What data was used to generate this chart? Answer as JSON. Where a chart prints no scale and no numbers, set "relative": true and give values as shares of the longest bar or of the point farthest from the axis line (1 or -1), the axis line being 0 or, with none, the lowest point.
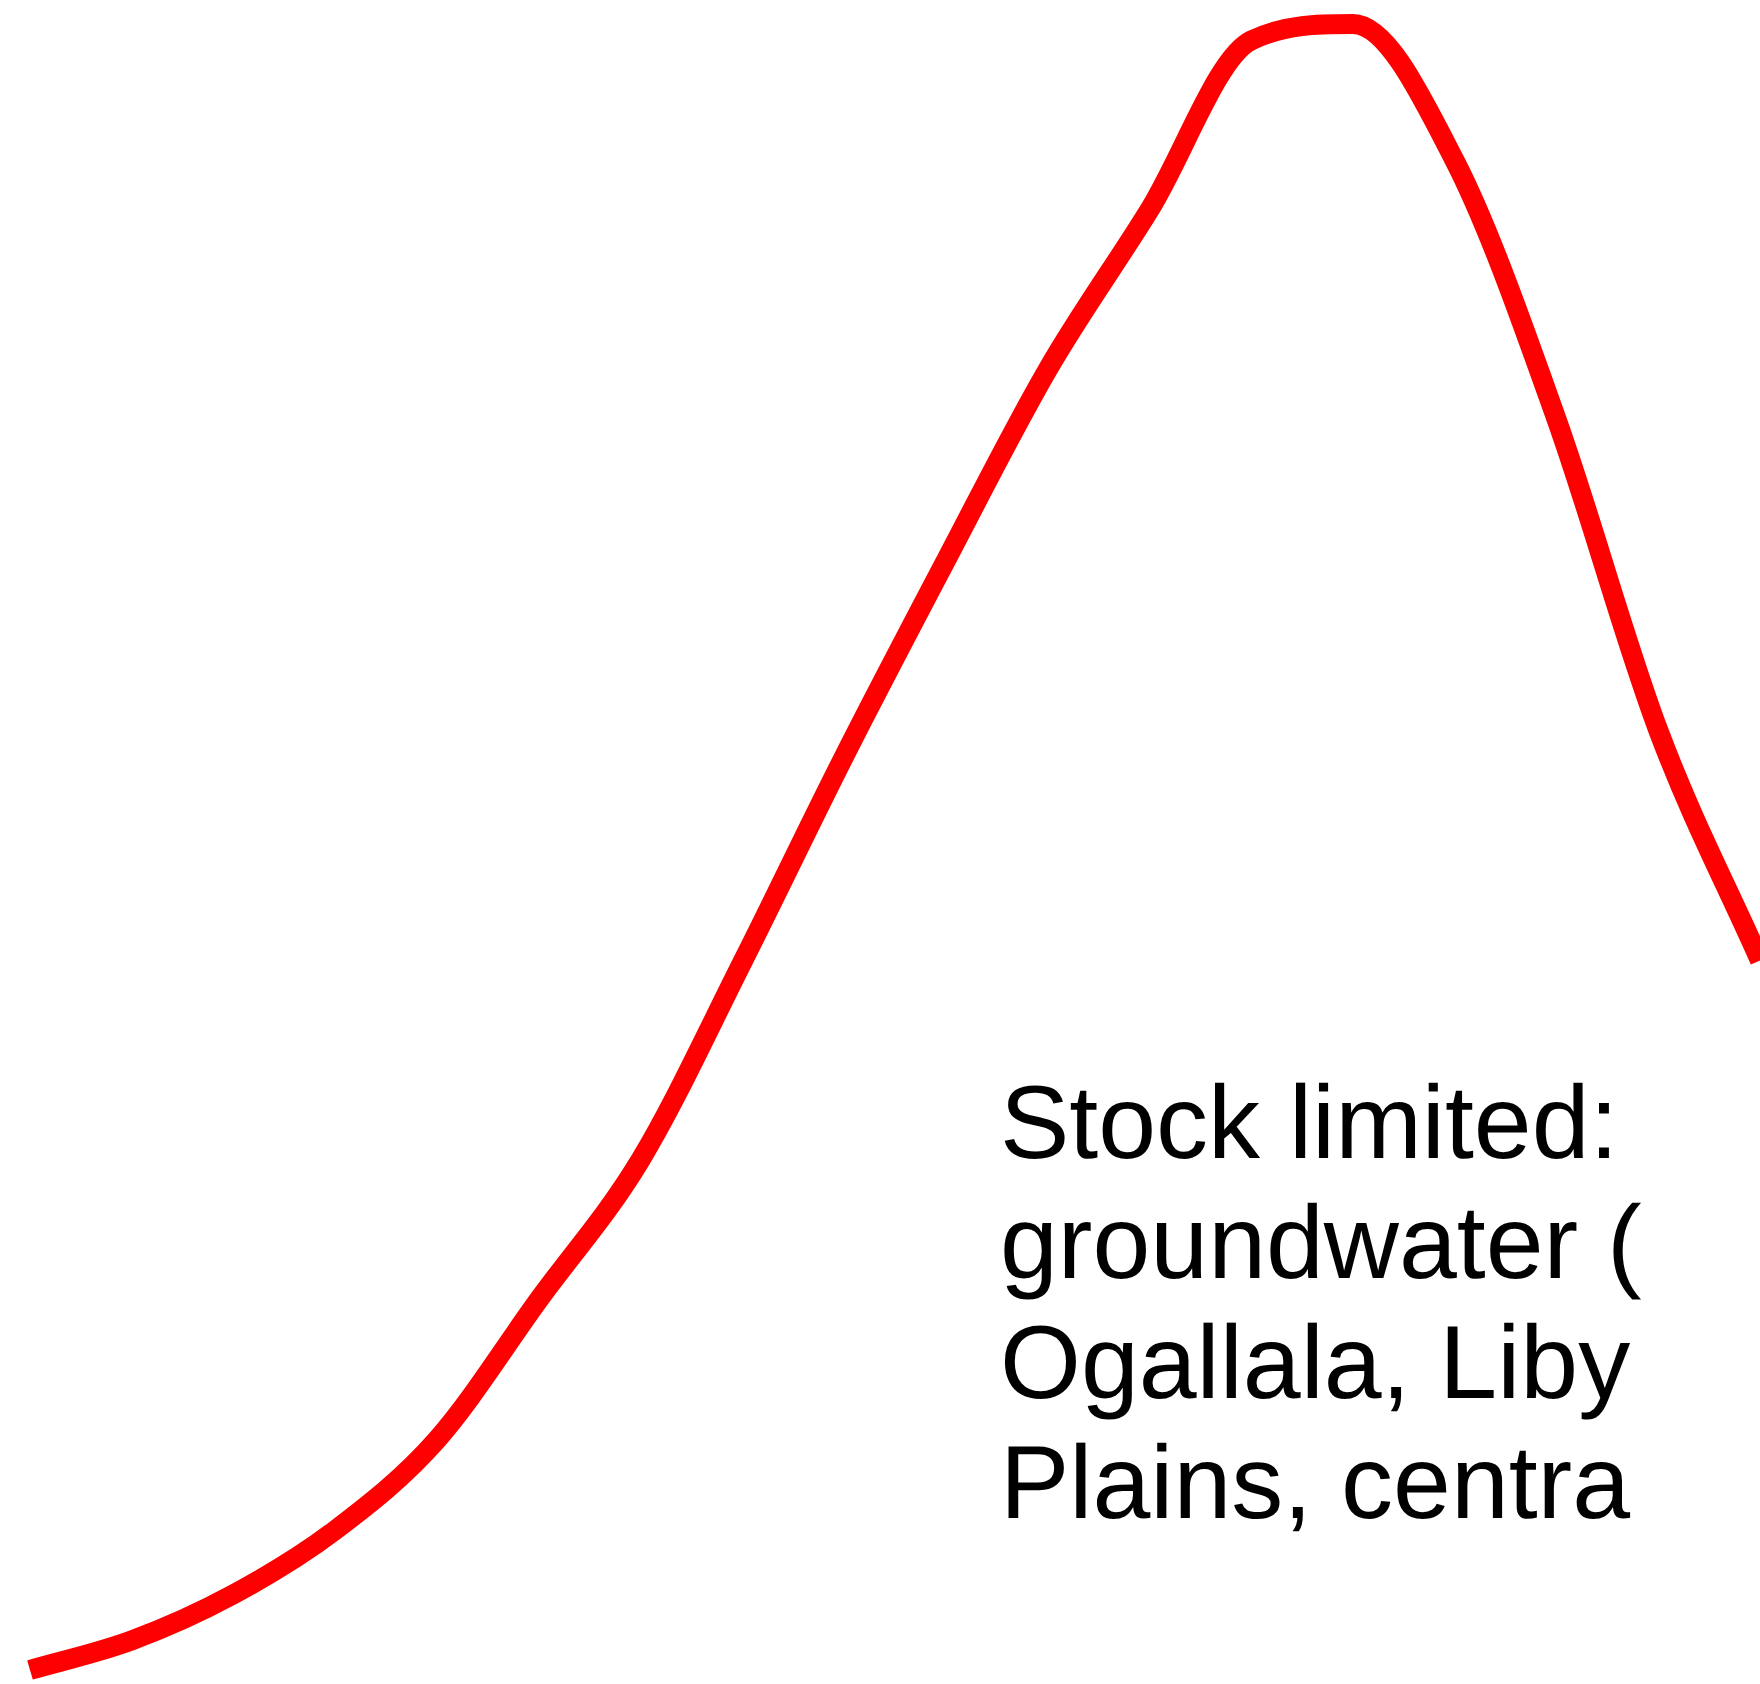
{
  "chart_data": {
    "type": "line",
    "relative": true,
    "categories": [
      null,
      null,
      null,
      null,
      null,
      null,
      null,
      null,
      null,
      null,
      null,
      null,
      null,
      null,
      null,
      null,
      null,
      null
    ],
    "series": [
      {
        "color": "#ff0000",
        "values": [
          0,
          0.018,
          0.046,
          0.085,
          0.14,
          0.225,
          0.31,
          0.43,
          0.555,
          0.674,
          0.79,
          0.887,
          0.99,
          1,
          0.917,
          0.76,
          0.571,
          0.431
        ]
      }
    ],
    "marker": "none",
    "legend": false,
    "annotations": [
      "Stock limited:\ngroundwater (\nOgallala, Liby\nPlains, centra"
    ]
  }
}
